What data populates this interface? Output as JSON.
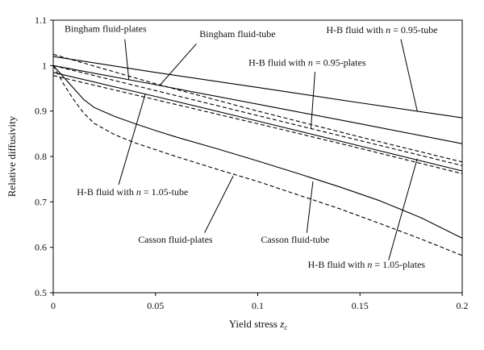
{
  "chart_data": {
    "type": "line",
    "title": "",
    "xlabel_main": "Yield stress ",
    "xlabel_var": "z",
    "xlabel_sub": "c",
    "ylabel": "Relative diffusivity",
    "xlim": [
      0,
      0.2
    ],
    "ylim": [
      0.5,
      1.1
    ],
    "xticks": [
      "0",
      "0.05",
      "0.1",
      "0.15",
      "0.2"
    ],
    "yticks": [
      "0.5",
      "0.6",
      "0.7",
      "0.8",
      "0.9",
      "1",
      "1.1"
    ],
    "grid": false,
    "legend": "none (curves labeled by leader-line annotations)",
    "series": [
      {
        "name": "H-B fluid with n = 0.95-tube",
        "style": "solid",
        "x": [
          0,
          0.05,
          0.1,
          0.15,
          0.2
        ],
        "y": [
          1.02,
          0.985,
          0.952,
          0.918,
          0.885
        ]
      },
      {
        "name": "H-B fluid with n = 0.95-plates",
        "style": "dashed",
        "x": [
          0,
          0.05,
          0.1,
          0.15,
          0.2
        ],
        "y": [
          1.025,
          0.96,
          0.9,
          0.843,
          0.788
        ]
      },
      {
        "name": "Bingham fluid-plates",
        "style": "solid",
        "x": [
          0,
          0.05,
          0.1,
          0.15,
          0.2
        ],
        "y": [
          1.0,
          0.958,
          0.915,
          0.872,
          0.828
        ]
      },
      {
        "name": "Bingham fluid-tube",
        "style": "dashed",
        "x": [
          0,
          0.05,
          0.1,
          0.15,
          0.2
        ],
        "y": [
          1.0,
          0.945,
          0.89,
          0.835,
          0.78
        ]
      },
      {
        "name": "H-B fluid with n = 1.05-tube",
        "style": "solid",
        "x": [
          0,
          0.05,
          0.1,
          0.15,
          0.2
        ],
        "y": [
          0.985,
          0.932,
          0.878,
          0.823,
          0.768
        ]
      },
      {
        "name": "H-B fluid with n = 1.05-plates",
        "style": "dashed",
        "x": [
          0,
          0.05,
          0.1,
          0.15,
          0.2
        ],
        "y": [
          0.978,
          0.925,
          0.872,
          0.818,
          0.762
        ]
      },
      {
        "name": "Casson fluid-tube",
        "style": "solid",
        "x": [
          0,
          0.005,
          0.01,
          0.015,
          0.02,
          0.03,
          0.04,
          0.05,
          0.06,
          0.08,
          0.1,
          0.12,
          0.14,
          0.16,
          0.18,
          0.2
        ],
        "y": [
          1.0,
          0.975,
          0.95,
          0.925,
          0.908,
          0.888,
          0.872,
          0.857,
          0.843,
          0.817,
          0.79,
          0.762,
          0.733,
          0.702,
          0.665,
          0.62
        ]
      },
      {
        "name": "Casson fluid-plates",
        "style": "dashed",
        "x": [
          0,
          0.005,
          0.01,
          0.015,
          0.02,
          0.03,
          0.04,
          0.05,
          0.06,
          0.08,
          0.1,
          0.12,
          0.14,
          0.16,
          0.18,
          0.2
        ],
        "y": [
          1.0,
          0.96,
          0.925,
          0.895,
          0.873,
          0.848,
          0.83,
          0.815,
          0.8,
          0.772,
          0.745,
          0.715,
          0.685,
          0.652,
          0.618,
          0.582
        ]
      }
    ],
    "annotations": [
      {
        "pre": "Bingham fluid-plates",
        "it": "",
        "post": "",
        "text_at": [
          0.0,
          1.074
        ],
        "line_from": [
          0.035,
          1.058
        ],
        "line_to": [
          0.037,
          0.968
        ]
      },
      {
        "pre": "Bingham fluid-tube",
        "it": "",
        "post": "",
        "text_at": [
          0.066,
          1.063
        ],
        "line_from": [
          0.07,
          1.048
        ],
        "line_to": [
          0.052,
          0.956
        ]
      },
      {
        "pre": "H-B fluid with ",
        "it": "n",
        "post": " = 0.95-tube",
        "text_at": [
          0.128,
          1.072
        ],
        "line_from": [
          0.17,
          1.058
        ],
        "line_to": [
          0.178,
          0.9
        ]
      },
      {
        "pre": "H-B fluid with ",
        "it": "n",
        "post": " = 0.95-plates",
        "text_at": [
          0.09,
          1.0
        ],
        "line_from": [
          0.128,
          0.986
        ],
        "line_to": [
          0.126,
          0.86
        ]
      },
      {
        "pre": "H-B fluid with ",
        "it": "n",
        "post": " = 1.05-tube",
        "text_at": [
          0.006,
          0.715
        ],
        "line_from": [
          0.032,
          0.738
        ],
        "line_to": [
          0.045,
          0.937
        ]
      },
      {
        "pre": "Casson fluid-plates",
        "it": "",
        "post": "",
        "text_at": [
          0.036,
          0.61
        ],
        "line_from": [
          0.074,
          0.632
        ],
        "line_to": [
          0.088,
          0.757
        ]
      },
      {
        "pre": "Casson fluid-tube",
        "it": "",
        "post": "",
        "text_at": [
          0.096,
          0.61
        ],
        "line_from": [
          0.124,
          0.632
        ],
        "line_to": [
          0.127,
          0.745
        ]
      },
      {
        "pre": "H-B fluid with ",
        "it": "n",
        "post": " = 1.05-plates",
        "text_at": [
          0.119,
          0.555
        ],
        "line_from": [
          0.164,
          0.572
        ],
        "line_to": [
          0.178,
          0.795
        ]
      }
    ]
  }
}
